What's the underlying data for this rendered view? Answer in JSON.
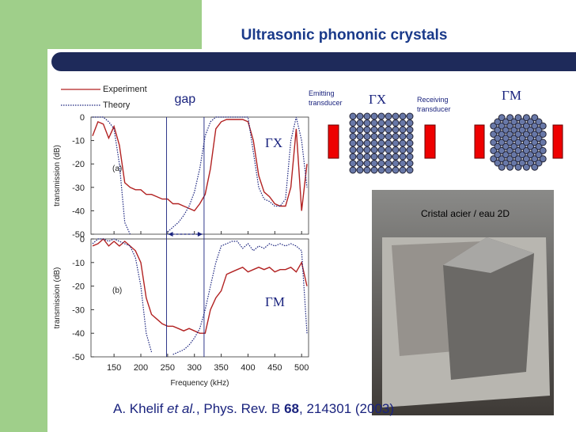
{
  "title": "Ultrasonic phononic crystals",
  "diagram": {
    "emitting": [
      "Emitting",
      "transducer"
    ],
    "receiving": [
      "Receiving",
      "transducer"
    ],
    "gx": "ΓX",
    "gm": "ΓM"
  },
  "photo": {
    "label": "Cristal acier / eau 2D"
  },
  "citation": [
    "A. Khelif ",
    "et al.",
    ", Phys. Rev. B ",
    "68",
    ", 214301 (2003)"
  ],
  "chart_data": [
    {
      "type": "line",
      "panel": "(a)",
      "annotation": "ΓX",
      "ylabel": "transmission (dB)",
      "gap_label": "gap",
      "gap_lines": [
        248,
        318
      ],
      "xlim": [
        107,
        513
      ],
      "xticks": [
        150,
        200,
        250,
        300,
        350,
        400,
        450,
        500
      ],
      "ylim": [
        -50,
        0
      ],
      "yticks": [
        0,
        -10,
        -20,
        -30,
        -40,
        -50
      ],
      "x": [
        110,
        120,
        130,
        140,
        150,
        160,
        170,
        180,
        190,
        200,
        210,
        220,
        230,
        240,
        250,
        260,
        270,
        280,
        290,
        300,
        310,
        320,
        330,
        340,
        350,
        360,
        370,
        380,
        390,
        400,
        410,
        420,
        430,
        440,
        450,
        460,
        470,
        480,
        490,
        500,
        510
      ],
      "series": [
        {
          "name": "Experiment",
          "color": "#b22222",
          "style": "solid",
          "values": [
            -8,
            -2,
            -3,
            -9,
            -4,
            -12,
            -28,
            -30,
            -31,
            -31,
            -33,
            -33,
            -34,
            -35,
            -35,
            -37,
            -37,
            -38,
            -39,
            -40,
            -37,
            -33,
            -22,
            -5,
            -2,
            -1,
            -1,
            -1,
            -1,
            -2,
            -10,
            -25,
            -32,
            -34,
            -37,
            -38,
            -38,
            -30,
            -5,
            -40,
            -20
          ]
        },
        {
          "name": "Theory",
          "color": "#1a237e",
          "style": "dotted",
          "values": [
            0,
            0,
            0,
            -2,
            -5,
            -20,
            -45,
            -50,
            null,
            null,
            null,
            null,
            null,
            null,
            -49,
            -47,
            -45,
            -42,
            -38,
            -32,
            -22,
            -8,
            -2,
            0,
            0,
            0,
            0,
            0,
            0,
            0,
            -15,
            -30,
            -35,
            -36,
            -38,
            -38,
            -35,
            -10,
            0,
            -10,
            -30
          ]
        }
      ]
    },
    {
      "type": "line",
      "panel": "(b)",
      "annotation": "ΓM",
      "ylabel": "transmission (dB)",
      "xlabel": "Frequency (kHz)",
      "xlim": [
        107,
        513
      ],
      "xticks": [
        150,
        200,
        250,
        300,
        350,
        400,
        450,
        500
      ],
      "ylim": [
        -50,
        0
      ],
      "yticks": [
        0,
        -10,
        -20,
        -30,
        -40,
        -50
      ],
      "x": [
        110,
        120,
        130,
        140,
        150,
        160,
        170,
        180,
        190,
        200,
        210,
        220,
        230,
        240,
        250,
        260,
        270,
        280,
        290,
        300,
        310,
        320,
        330,
        340,
        350,
        360,
        370,
        380,
        390,
        400,
        410,
        420,
        430,
        440,
        450,
        460,
        470,
        480,
        490,
        500,
        510
      ],
      "series": [
        {
          "color": "#b22222",
          "style": "solid",
          "values": [
            -3,
            -2,
            0,
            -3,
            -1,
            -3,
            -1,
            -3,
            -5,
            -10,
            -25,
            -32,
            -34,
            -36,
            -37,
            -37,
            -38,
            -39,
            -38,
            -39,
            -40,
            -40,
            -30,
            -25,
            -22,
            -15,
            -14,
            -13,
            -12,
            -14,
            -13,
            -12,
            -13,
            -12,
            -14,
            -13,
            -13,
            -12,
            -14,
            -10,
            -20
          ]
        },
        {
          "color": "#1a237e",
          "style": "dotted",
          "values": [
            -2,
            0,
            0,
            -1,
            0,
            -1,
            -2,
            -3,
            -8,
            -20,
            -40,
            -48,
            null,
            null,
            null,
            -49,
            -48,
            -47,
            -45,
            -42,
            -38,
            -30,
            -20,
            -10,
            -3,
            -2,
            -1,
            -1,
            -4,
            -2,
            -5,
            -3,
            -4,
            -2,
            -3,
            -2,
            -3,
            -2,
            -3,
            -5,
            -40
          ]
        }
      ]
    }
  ]
}
